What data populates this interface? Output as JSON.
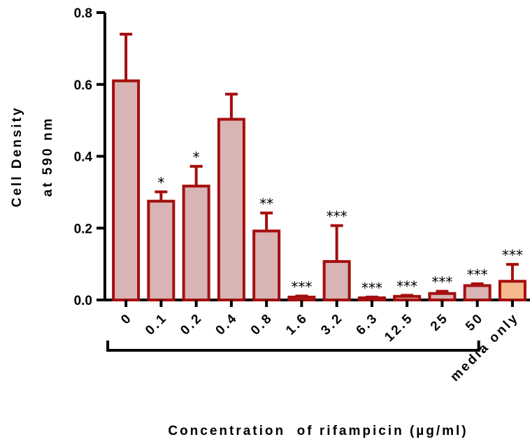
{
  "chart_data": {
    "type": "bar",
    "xlabel": "Concentration  of rifampicin (µg/ml)",
    "ylabel_line1": "Cell Density",
    "ylabel_line2": "at 590 nm",
    "ylim": [
      0,
      0.8
    ],
    "yticks": [
      "0.0",
      "0.2",
      "0.4",
      "0.6",
      "0.8"
    ],
    "ytick_values": [
      0,
      0.2,
      0.4,
      0.6,
      0.8
    ],
    "grid": false,
    "categories": [
      "0",
      "0.1",
      "0.2",
      "0.4",
      "0.8",
      "1.6",
      "3.2",
      "6.3",
      "12.5",
      "25",
      "50",
      "media only"
    ],
    "values": [
      0.61,
      0.275,
      0.317,
      0.503,
      0.192,
      0.008,
      0.107,
      0.006,
      0.01,
      0.018,
      0.04,
      0.052
    ],
    "errors": [
      0.13,
      0.026,
      0.055,
      0.07,
      0.05,
      0.003,
      0.1,
      0.002,
      0.003,
      0.006,
      0.005,
      0.047
    ],
    "significance": [
      "",
      "*",
      "*",
      "",
      "**",
      "***",
      "***",
      "***",
      "***",
      "***",
      "***",
      "***"
    ],
    "colors": {
      "bar_fill": "#d8b4b4",
      "bar_fill_control": "#f6b98e",
      "bar_stroke": "#a50e0e",
      "axis": "#000000"
    },
    "bracket": {
      "from_category": "0",
      "to_category": "50"
    }
  }
}
